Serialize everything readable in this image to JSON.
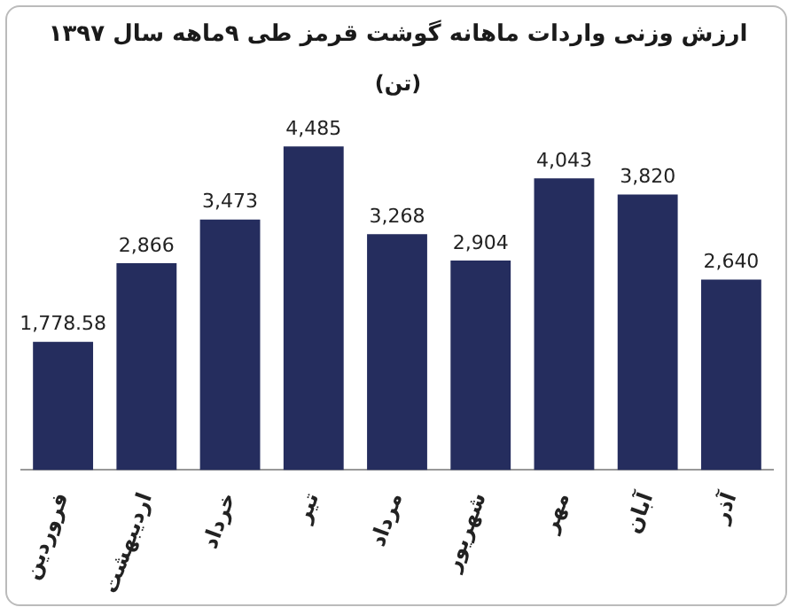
{
  "chart_data": {
    "type": "bar",
    "title": "ارزش وزنی واردات ماهانه گوشت قرمز طی ۹ماهه سال ۱۳۹۷",
    "subtitle": "(تن)",
    "categories": [
      "فروردین",
      "اردیبهشت",
      "خرداد",
      "تیر",
      "مرداد",
      "شهریور",
      "مهر",
      "آبان",
      "آذر"
    ],
    "values": [
      1778.58,
      2866,
      3473,
      4485,
      3268,
      2904,
      4043,
      3820,
      2640
    ],
    "value_labels": [
      "1,778.58",
      "2,866",
      "3,473",
      "4,485",
      "3,268",
      "2,904",
      "4,043",
      "3,820",
      "2,640"
    ],
    "color": "#252d5e",
    "grid": false,
    "legend": false
  }
}
